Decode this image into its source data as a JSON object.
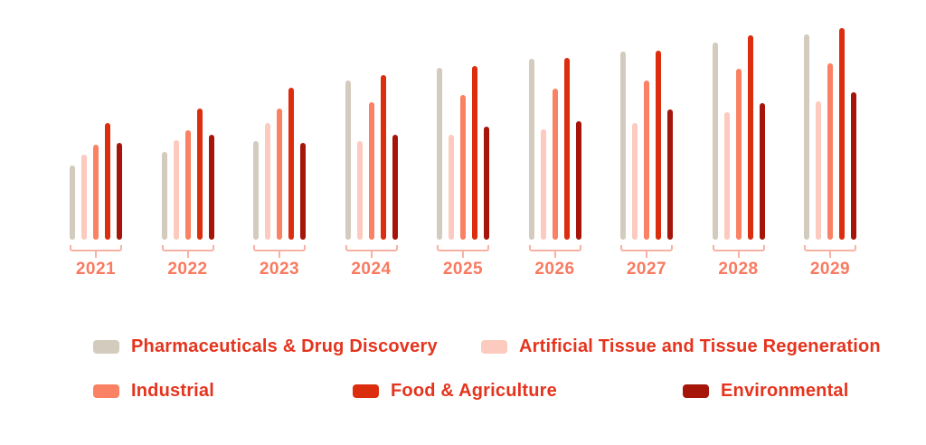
{
  "chart_data": {
    "type": "bar",
    "title": "",
    "xlabel": "",
    "ylabel": "",
    "categories": [
      "2021",
      "2022",
      "2023",
      "2024",
      "2025",
      "2026",
      "2027",
      "2028",
      "2029"
    ],
    "series": [
      {
        "name": "Pharmaceuticals & Drug Discovery",
        "color": "#d3cbbd",
        "values": [
          82,
          97,
          109,
          176,
          190,
          200,
          208,
          218,
          227
        ]
      },
      {
        "name": "Artificial Tissue and Tissue Regeneration",
        "color": "#fccabe",
        "values": [
          94,
          110,
          129,
          109,
          116,
          122,
          129,
          141,
          153
        ]
      },
      {
        "name": "Industrial",
        "color": "#fa8163",
        "values": [
          105,
          121,
          145,
          152,
          160,
          167,
          176,
          189,
          195
        ]
      },
      {
        "name": "Food & Agriculture",
        "color": "#dc2d0e",
        "values": [
          129,
          145,
          168,
          182,
          192,
          201,
          209,
          226,
          234
        ]
      },
      {
        "name": "Environmental",
        "color": "#a5150a",
        "values": [
          107,
          116,
          107,
          116,
          125,
          131,
          144,
          151,
          163
        ]
      }
    ],
    "value_axis_visible": false,
    "values_unit": "relative bar height in px (no numeric axis shown in image)",
    "ylim": [
      0,
      240
    ],
    "grid": false,
    "legend_position": "bottom"
  },
  "legend": {
    "items": [
      {
        "label": "Pharmaceuticals & Drug Discovery",
        "color": "#d3cbbd"
      },
      {
        "label": "Artificial Tissue and Tissue Regeneration",
        "color": "#fccabe"
      },
      {
        "label": "Industrial",
        "color": "#fa8163"
      },
      {
        "label": "Food & Agriculture",
        "color": "#dc2d0e"
      },
      {
        "label": "Environmental",
        "color": "#a5150a"
      }
    ]
  },
  "styles": {
    "background": "#ffffff",
    "legend_text_color": "#e5341e",
    "year_label_color": "#f87a60",
    "bracket_color": "#f8b2a3"
  }
}
